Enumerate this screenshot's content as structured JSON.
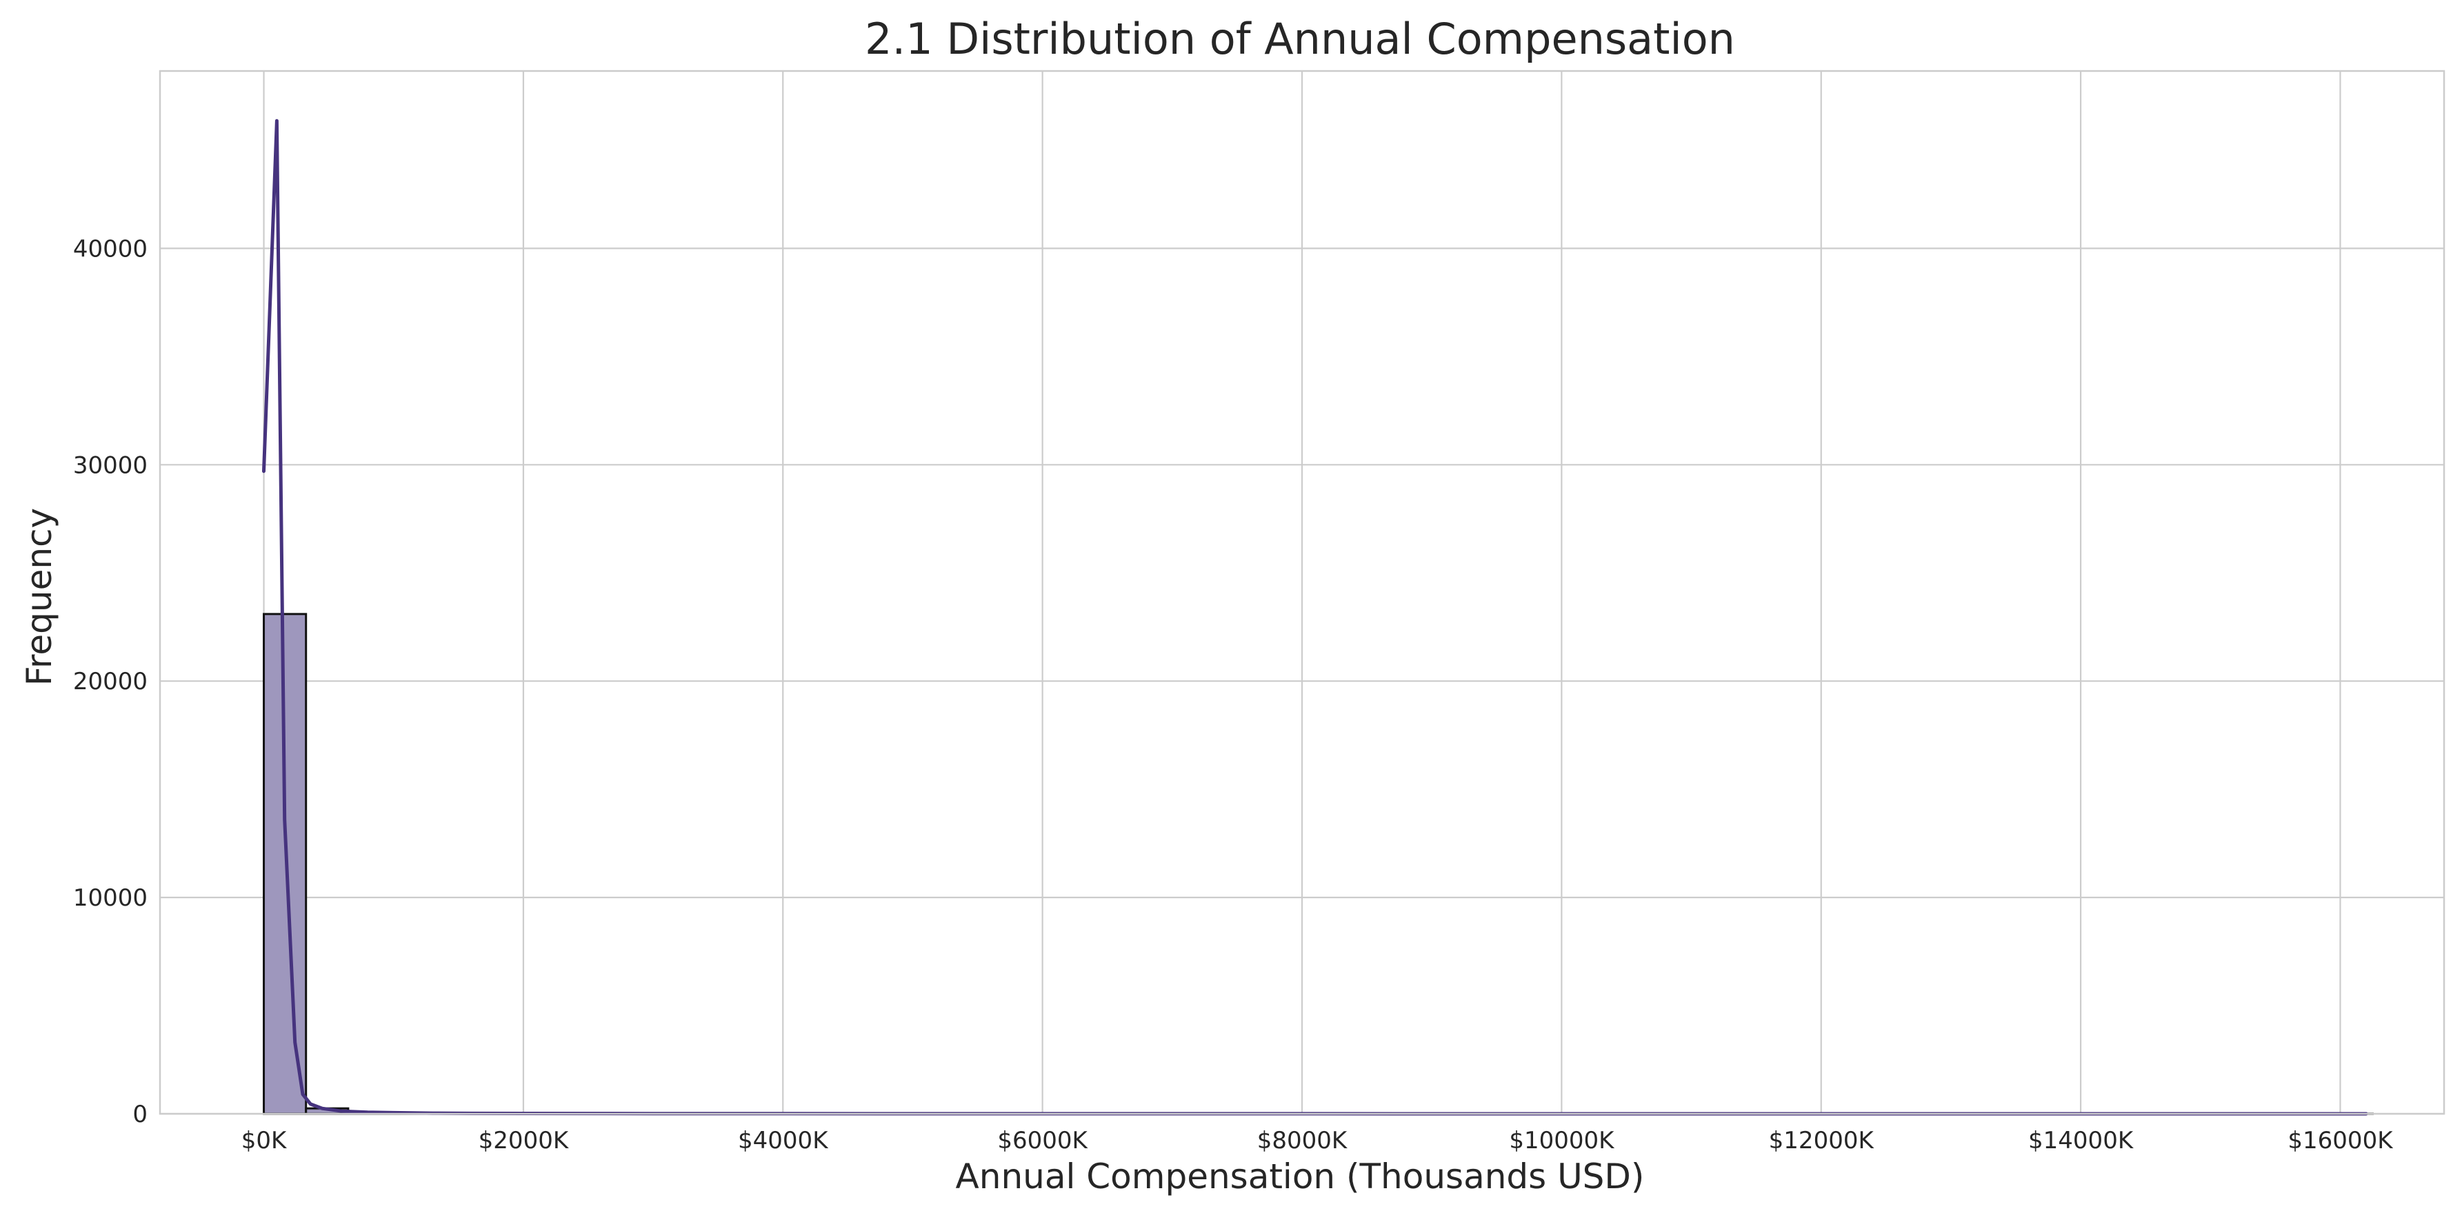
{
  "chart_data": {
    "type": "bar",
    "title": "2.1 Distribution of Annual Compensation",
    "xlabel": "Annual Compensation (Thousands USD)",
    "ylabel": "Frequency",
    "xlim": [
      -800,
      16800
    ],
    "ylim": [
      0,
      48200
    ],
    "x_ticks": [
      0,
      2000,
      4000,
      6000,
      8000,
      10000,
      12000,
      14000,
      16000
    ],
    "x_tick_labels": [
      "$0K",
      "$2000K",
      "$4000K",
      "$6000K",
      "$8000K",
      "$10000K",
      "$12000K",
      "$14000K",
      "$16000K"
    ],
    "y_ticks": [
      0,
      10000,
      20000,
      30000,
      40000
    ],
    "y_tick_labels": [
      "0",
      "10000",
      "20000",
      "30000",
      "40000"
    ],
    "grid": true,
    "bin_width": 325,
    "histogram": {
      "bin_starts": [
        0,
        325,
        650,
        975,
        1300,
        1625,
        1950,
        2275,
        2600,
        2925,
        3250,
        3575,
        3900,
        4225,
        4550,
        4875,
        5200,
        5525,
        5850,
        6175,
        6500,
        6825,
        7150,
        7475,
        7800,
        8125,
        8450,
        8775,
        9100,
        9425,
        9750,
        10075,
        10400,
        10725,
        11050,
        11375,
        11700,
        12025,
        12350,
        12675,
        13000,
        13325,
        13650,
        13975,
        14300,
        14625,
        14950,
        15275,
        15600,
        15925
      ],
      "counts": [
        23100,
        250,
        60,
        30,
        15,
        10,
        8,
        5,
        4,
        3,
        2,
        2,
        1,
        1,
        1,
        1,
        1,
        0,
        0,
        1,
        0,
        0,
        0,
        0,
        0,
        1,
        0,
        0,
        0,
        0,
        0,
        0,
        0,
        0,
        0,
        0,
        0,
        0,
        0,
        0,
        0,
        0,
        0,
        0,
        0,
        0,
        0,
        0,
        0,
        1
      ]
    },
    "kde": {
      "x": [
        0,
        100,
        160,
        240,
        300,
        360,
        450,
        600,
        800,
        1000,
        1300,
        1600,
        2000,
        3000,
        4000,
        6000,
        8000,
        10000,
        12000,
        14000,
        16200
      ],
      "y": [
        29700,
        45900,
        13600,
        3300,
        900,
        450,
        250,
        120,
        70,
        50,
        30,
        20,
        15,
        8,
        5,
        3,
        2,
        1,
        1,
        1,
        1
      ]
    },
    "colors": {
      "bar_fill": "#9e97bd",
      "bar_edge": "#111111",
      "kde_line": "#46337e",
      "grid": "#cccccc",
      "spine": "#cccccc"
    }
  }
}
